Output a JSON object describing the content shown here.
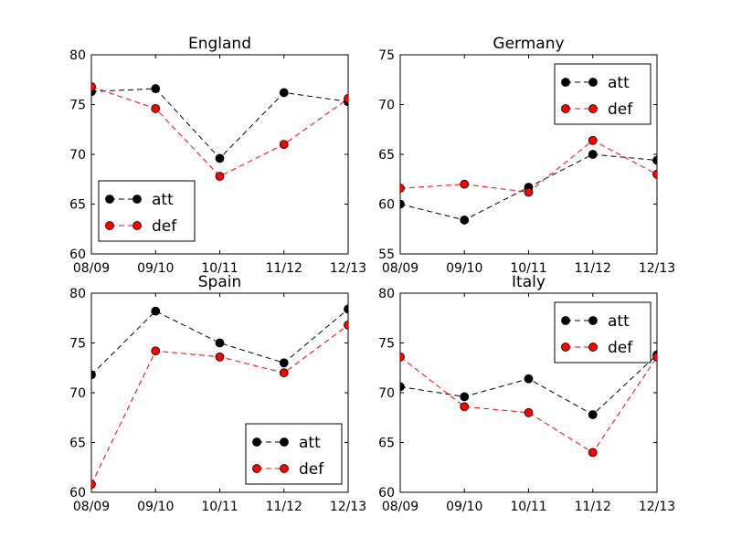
{
  "chart_data": [
    {
      "type": "line",
      "title": "England",
      "categories": [
        "08/09",
        "09/10",
        "10/11",
        "11/12",
        "12/13"
      ],
      "ylim": [
        60,
        80
      ],
      "yticks": [
        60,
        65,
        70,
        75,
        80
      ],
      "legend": "lower-left",
      "series": [
        {
          "name": "att",
          "color": "#000000",
          "values": [
            76.3,
            76.6,
            69.6,
            76.2,
            75.3
          ]
        },
        {
          "name": "def",
          "color": "#ff0000",
          "values": [
            76.8,
            74.6,
            67.8,
            71.0,
            75.6
          ]
        }
      ]
    },
    {
      "type": "line",
      "title": "Germany",
      "categories": [
        "08/09",
        "09/10",
        "10/11",
        "11/12",
        "12/13"
      ],
      "ylim": [
        55,
        75
      ],
      "yticks": [
        55,
        60,
        65,
        70,
        75
      ],
      "legend": "upper-right",
      "series": [
        {
          "name": "att",
          "color": "#000000",
          "values": [
            60.0,
            58.4,
            61.7,
            65.0,
            64.4
          ]
        },
        {
          "name": "def",
          "color": "#ff0000",
          "values": [
            61.6,
            62.0,
            61.2,
            66.4,
            63.0
          ]
        }
      ]
    },
    {
      "type": "line",
      "title": "Spain",
      "categories": [
        "08/09",
        "09/10",
        "10/11",
        "11/12",
        "12/13"
      ],
      "ylim": [
        60,
        80
      ],
      "yticks": [
        60,
        65,
        70,
        75,
        80
      ],
      "legend": "lower-right",
      "series": [
        {
          "name": "att",
          "color": "#000000",
          "values": [
            71.8,
            78.2,
            75.0,
            73.0,
            78.4
          ]
        },
        {
          "name": "def",
          "color": "#ff0000",
          "values": [
            60.8,
            74.2,
            73.6,
            72.0,
            76.8
          ]
        }
      ]
    },
    {
      "type": "line",
      "title": "Italy",
      "categories": [
        "08/09",
        "09/10",
        "10/11",
        "11/12",
        "12/13"
      ],
      "ylim": [
        60,
        80
      ],
      "yticks": [
        60,
        65,
        70,
        75,
        80
      ],
      "legend": "upper-right",
      "series": [
        {
          "name": "att",
          "color": "#000000",
          "values": [
            70.6,
            69.6,
            71.4,
            67.8,
            73.8
          ]
        },
        {
          "name": "def",
          "color": "#ff0000",
          "values": [
            73.6,
            68.6,
            68.0,
            64.0,
            73.6
          ]
        }
      ]
    }
  ]
}
